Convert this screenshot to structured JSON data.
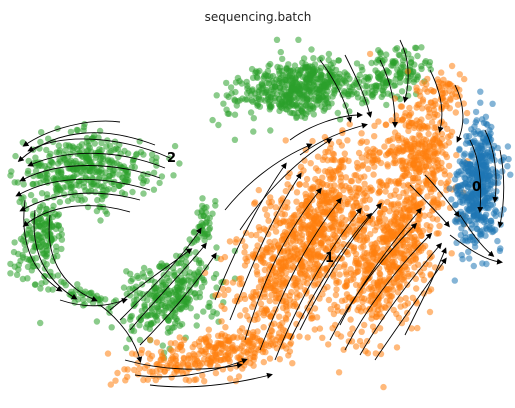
{
  "chart_data": {
    "type": "scatter",
    "title": "sequencing.batch",
    "xlabel": "",
    "ylabel": "",
    "grid": false,
    "axes_visible": false,
    "overlay": "velocity-streamlines",
    "series": [
      {
        "category": "0",
        "color": "#1f77b4"
      },
      {
        "category": "1",
        "color": "#ff7f0e"
      },
      {
        "category": "2",
        "color": "#2ca02c"
      }
    ],
    "cluster_labels": [
      "0",
      "1",
      "2"
    ]
  }
}
